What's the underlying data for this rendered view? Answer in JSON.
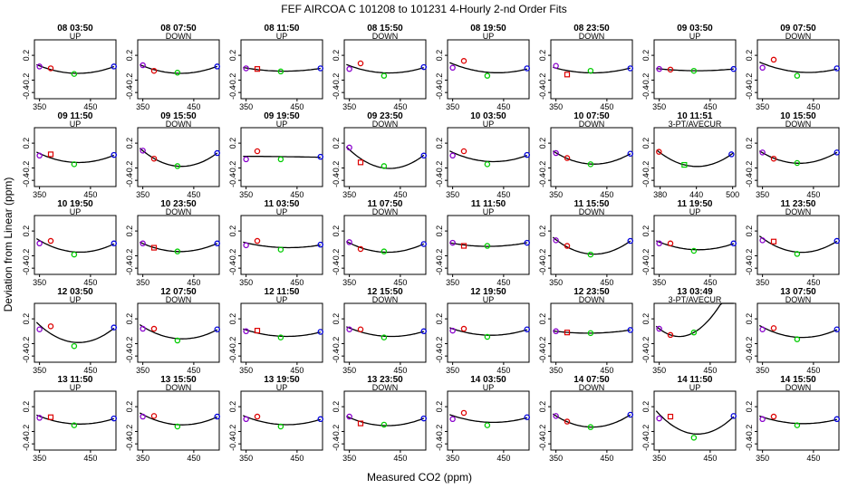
{
  "chart_data": {
    "type": "scatter",
    "title": "FEF   AIRCOA C   101208 to 101231   4-Hourly 2-nd Order Fits",
    "xlabel": "Measured CO2 (ppm)",
    "ylabel": "Deviation from Linear (ppm)",
    "default_xlim": [
      340,
      500
    ],
    "default_xticks": [
      "350",
      "450"
    ],
    "ylim": [
      -0.5,
      0.45
    ],
    "yticks": [
      "0.2",
      "-0.2",
      "-0.4"
    ],
    "yticks_values": [
      0.2,
      -0.2,
      -0.4
    ],
    "grid": false,
    "point_colors": {
      "ref1": "#8800cc",
      "ref2": "#dd0000",
      "ref3": "#00cc00",
      "ref4": "#0000dd"
    },
    "panels": [
      {
        "title": "08 03:50",
        "label": "UP",
        "points": [
          [
            350,
            0.02
          ],
          [
            372,
            -0.01
          ],
          [
            418,
            -0.1
          ],
          [
            496,
            0.02
          ]
        ]
      },
      {
        "title": "08 07:50",
        "label": "DOWN",
        "points": [
          [
            350,
            0.04
          ],
          [
            372,
            -0.05
          ],
          [
            418,
            -0.08
          ],
          [
            496,
            0.02
          ]
        ]
      },
      {
        "title": "08 11:50",
        "label": "UP",
        "points": [
          [
            350,
            -0.01
          ],
          [
            372,
            -0.02
          ],
          [
            418,
            -0.06
          ],
          [
            496,
            -0.01
          ]
        ]
      },
      {
        "title": "08 15:50",
        "label": "DOWN",
        "points": [
          [
            350,
            -0.02
          ],
          [
            372,
            0.07
          ],
          [
            418,
            -0.13
          ],
          [
            496,
            0.01
          ]
        ]
      },
      {
        "title": "08 19:50",
        "label": "UP",
        "points": [
          [
            350,
            0.0
          ],
          [
            372,
            0.11
          ],
          [
            418,
            -0.13
          ],
          [
            496,
            -0.01
          ]
        ]
      },
      {
        "title": "08 23:50",
        "label": "DOWN",
        "points": [
          [
            350,
            0.03
          ],
          [
            372,
            -0.11
          ],
          [
            418,
            -0.05
          ],
          [
            496,
            -0.01
          ]
        ]
      },
      {
        "title": "09 03:50",
        "label": "UP",
        "points": [
          [
            350,
            -0.02
          ],
          [
            372,
            -0.03
          ],
          [
            418,
            -0.05
          ],
          [
            496,
            -0.02
          ]
        ]
      },
      {
        "title": "09 07:50",
        "label": "DOWN",
        "points": [
          [
            350,
            0.0
          ],
          [
            372,
            0.13
          ],
          [
            418,
            -0.13
          ],
          [
            496,
            -0.01
          ]
        ]
      },
      {
        "title": "09 11:50",
        "label": "UP",
        "points": [
          [
            350,
            0.0
          ],
          [
            372,
            0.02
          ],
          [
            418,
            -0.14
          ],
          [
            496,
            0.01
          ]
        ]
      },
      {
        "title": "09 15:50",
        "label": "DOWN",
        "points": [
          [
            350,
            0.08
          ],
          [
            372,
            -0.05
          ],
          [
            418,
            -0.17
          ],
          [
            496,
            0.04
          ]
        ]
      },
      {
        "title": "09 19:50",
        "label": "UP",
        "points": [
          [
            350,
            -0.06
          ],
          [
            372,
            0.07
          ],
          [
            418,
            -0.06
          ],
          [
            496,
            -0.02
          ]
        ]
      },
      {
        "title": "09 23:50",
        "label": "DOWN",
        "points": [
          [
            350,
            0.13
          ],
          [
            372,
            -0.11
          ],
          [
            418,
            -0.17
          ],
          [
            496,
            0.0
          ]
        ]
      },
      {
        "title": "10 03:50",
        "label": "UP",
        "points": [
          [
            350,
            0.0
          ],
          [
            372,
            0.07
          ],
          [
            418,
            -0.14
          ],
          [
            496,
            0.01
          ]
        ]
      },
      {
        "title": "10 07:50",
        "label": "DOWN",
        "points": [
          [
            350,
            0.04
          ],
          [
            372,
            -0.04
          ],
          [
            418,
            -0.14
          ],
          [
            496,
            0.03
          ]
        ]
      },
      {
        "title": "10 11:51",
        "label": "3-PT/AVECUR",
        "xlim": [
          370,
          505
        ],
        "xticks": [
          "380",
          "440",
          "500"
        ],
        "points": [
          [
            378,
            0.06
          ],
          [
            420,
            -0.15
          ],
          [
            498,
            0.02
          ]
        ]
      },
      {
        "title": "10 15:50",
        "label": "DOWN",
        "points": [
          [
            350,
            0.05
          ],
          [
            372,
            -0.05
          ],
          [
            418,
            -0.12
          ],
          [
            496,
            0.05
          ]
        ]
      },
      {
        "title": "10 19:50",
        "label": "UP",
        "points": [
          [
            350,
            0.0
          ],
          [
            372,
            0.04
          ],
          [
            418,
            -0.18
          ],
          [
            496,
            0.0
          ]
        ]
      },
      {
        "title": "10 23:50",
        "label": "DOWN",
        "points": [
          [
            350,
            0.0
          ],
          [
            372,
            -0.07
          ],
          [
            418,
            -0.13
          ],
          [
            496,
            0.0
          ]
        ]
      },
      {
        "title": "11 03:50",
        "label": "UP",
        "points": [
          [
            350,
            -0.03
          ],
          [
            372,
            0.04
          ],
          [
            418,
            -0.1
          ],
          [
            496,
            -0.02
          ]
        ]
      },
      {
        "title": "11 07:50",
        "label": "DOWN",
        "points": [
          [
            350,
            0.02
          ],
          [
            372,
            -0.09
          ],
          [
            418,
            -0.13
          ],
          [
            496,
            -0.01
          ]
        ]
      },
      {
        "title": "11 11:50",
        "label": "UP",
        "points": [
          [
            350,
            0.01
          ],
          [
            372,
            -0.04
          ],
          [
            418,
            -0.04
          ],
          [
            496,
            0.01
          ]
        ]
      },
      {
        "title": "11 15:50",
        "label": "DOWN",
        "points": [
          [
            350,
            0.05
          ],
          [
            372,
            -0.04
          ],
          [
            418,
            -0.18
          ],
          [
            496,
            0.04
          ]
        ]
      },
      {
        "title": "11 19:50",
        "label": "UP",
        "points": [
          [
            350,
            0.0
          ],
          [
            372,
            0.0
          ],
          [
            418,
            -0.12
          ],
          [
            496,
            0.0
          ]
        ]
      },
      {
        "title": "11 23:50",
        "label": "DOWN",
        "points": [
          [
            350,
            0.05
          ],
          [
            372,
            0.03
          ],
          [
            418,
            -0.17
          ],
          [
            496,
            0.04
          ]
        ]
      },
      {
        "title": "12 03:50",
        "label": "UP",
        "points": [
          [
            350,
            0.03
          ],
          [
            372,
            0.08
          ],
          [
            418,
            -0.24
          ],
          [
            496,
            0.06
          ]
        ]
      },
      {
        "title": "12 07:50",
        "label": "DOWN",
        "points": [
          [
            350,
            0.04
          ],
          [
            372,
            0.04
          ],
          [
            418,
            -0.15
          ],
          [
            496,
            0.03
          ]
        ]
      },
      {
        "title": "12 11:50",
        "label": "UP",
        "points": [
          [
            350,
            0.0
          ],
          [
            372,
            0.01
          ],
          [
            418,
            -0.1
          ],
          [
            496,
            -0.01
          ]
        ]
      },
      {
        "title": "12 15:50",
        "label": "DOWN",
        "points": [
          [
            350,
            0.03
          ],
          [
            372,
            0.03
          ],
          [
            418,
            -0.1
          ],
          [
            496,
            0.0
          ]
        ]
      },
      {
        "title": "12 19:50",
        "label": "UP",
        "points": [
          [
            350,
            0.01
          ],
          [
            372,
            0.04
          ],
          [
            418,
            -0.09
          ],
          [
            496,
            0.03
          ]
        ]
      },
      {
        "title": "12 23:50",
        "label": "DOWN",
        "points": [
          [
            350,
            0.0
          ],
          [
            372,
            -0.02
          ],
          [
            418,
            -0.03
          ],
          [
            496,
            0.02
          ]
        ]
      },
      {
        "title": "13 03:49",
        "label": "3-PT/AVECUR",
        "points": [
          [
            350,
            0.04
          ],
          [
            372,
            -0.06
          ],
          [
            418,
            -0.02
          ]
        ]
      },
      {
        "title": "13 07:50",
        "label": "DOWN",
        "points": [
          [
            350,
            0.03
          ],
          [
            372,
            0.05
          ],
          [
            418,
            -0.13
          ],
          [
            496,
            0.03
          ]
        ]
      },
      {
        "title": "13 11:50",
        "label": "UP",
        "points": [
          [
            350,
            0.02
          ],
          [
            372,
            0.03
          ],
          [
            418,
            -0.1
          ],
          [
            496,
            0.01
          ]
        ]
      },
      {
        "title": "13 15:50",
        "label": "DOWN",
        "points": [
          [
            350,
            0.04
          ],
          [
            372,
            0.05
          ],
          [
            418,
            -0.12
          ],
          [
            496,
            0.04
          ]
        ]
      },
      {
        "title": "13 19:50",
        "label": "UP",
        "points": [
          [
            350,
            0.0
          ],
          [
            372,
            0.04
          ],
          [
            418,
            -0.12
          ],
          [
            496,
            0.0
          ]
        ]
      },
      {
        "title": "13 23:50",
        "label": "DOWN",
        "points": [
          [
            350,
            0.04
          ],
          [
            372,
            -0.07
          ],
          [
            418,
            -0.09
          ],
          [
            496,
            0.01
          ]
        ]
      },
      {
        "title": "14 03:50",
        "label": "UP",
        "points": [
          [
            350,
            0.0
          ],
          [
            372,
            0.1
          ],
          [
            418,
            -0.1
          ],
          [
            496,
            0.03
          ]
        ]
      },
      {
        "title": "14 07:50",
        "label": "DOWN",
        "points": [
          [
            350,
            0.05
          ],
          [
            372,
            -0.04
          ],
          [
            418,
            -0.13
          ],
          [
            496,
            0.07
          ]
        ]
      },
      {
        "title": "14 11:50",
        "label": "UP",
        "points": [
          [
            350,
            0.01
          ],
          [
            372,
            0.04
          ],
          [
            418,
            -0.3
          ],
          [
            496,
            0.05
          ]
        ]
      },
      {
        "title": "14 15:50",
        "label": "DOWN",
        "points": [
          [
            350,
            0.0
          ],
          [
            372,
            0.04
          ],
          [
            418,
            -0.1
          ],
          [
            496,
            0.0
          ]
        ]
      }
    ]
  }
}
